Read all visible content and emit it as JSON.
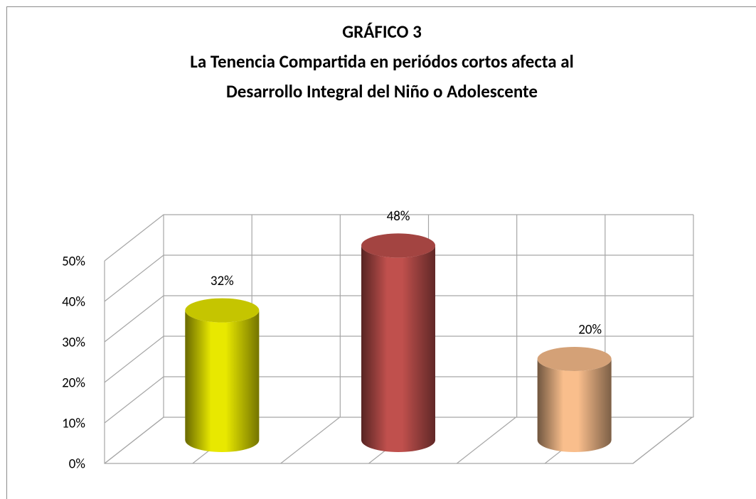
{
  "chart_data": {
    "type": "bar3d-cylinder",
    "title": [
      "GRÁFICO 3",
      "La Tenencia Compartida en periódos cortos afecta al",
      "Desarrollo Integral del Niño o Adolescente"
    ],
    "categories": [
      null,
      null,
      null
    ],
    "values": [
      32,
      48,
      20
    ],
    "value_labels": [
      "32%",
      "48%",
      "20%"
    ],
    "colors": [
      "#e8e800",
      "#c0504d",
      "#f9be8c"
    ],
    "ylim": [
      0,
      50
    ],
    "yticks": [
      {
        "value": 0,
        "label": "0%"
      },
      {
        "value": 10,
        "label": "10%"
      },
      {
        "value": 20,
        "label": "20%"
      },
      {
        "value": 30,
        "label": "30%"
      },
      {
        "value": 40,
        "label": "40%"
      },
      {
        "value": 50,
        "label": "50%"
      }
    ],
    "grid": true
  }
}
